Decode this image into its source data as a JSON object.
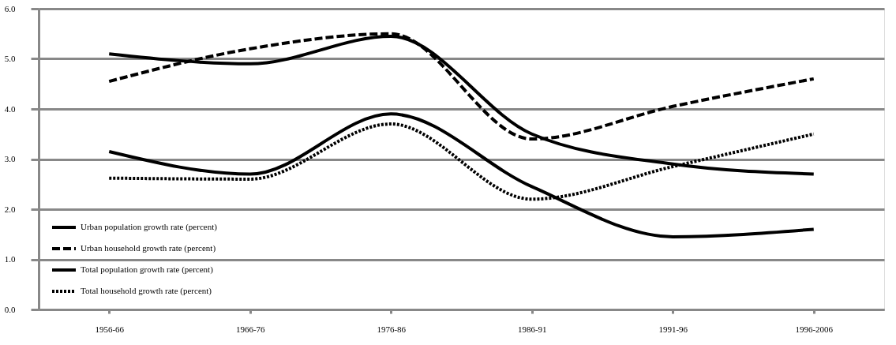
{
  "chart_data": {
    "type": "line",
    "categories": [
      "1956-66",
      "1966-76",
      "1976-86",
      "1986-91",
      "1991-96",
      "1996-2006"
    ],
    "series": [
      {
        "name": "Urban population growth rate (percent)",
        "color": "#000000",
        "line_style": "solid",
        "values": [
          5.1,
          4.9,
          5.45,
          3.5,
          2.9,
          2.7
        ]
      },
      {
        "name": "Urban household growth rate (percent)",
        "color": "#000000",
        "line_style": "dashed",
        "values": [
          4.55,
          5.2,
          5.5,
          3.4,
          4.05,
          4.6
        ]
      },
      {
        "name": "Total population growth rate (percent)",
        "color": "#000000",
        "line_style": "solid",
        "values": [
          3.15,
          2.7,
          3.9,
          2.45,
          1.45,
          1.6
        ]
      },
      {
        "name": "Total household growth rate (percent)",
        "color": "#000000",
        "line_style": "dotted",
        "values": [
          2.62,
          2.6,
          3.7,
          2.2,
          2.85,
          3.5
        ]
      }
    ],
    "ylim": [
      0,
      6
    ],
    "yticks": [
      {
        "value": 0,
        "label": "0.0"
      },
      {
        "value": 1,
        "label": "1.0"
      },
      {
        "value": 2,
        "label": "2.0"
      },
      {
        "value": 3,
        "label": "3.0"
      },
      {
        "value": 4,
        "label": "4.0"
      },
      {
        "value": 5,
        "label": "5.0"
      },
      {
        "value": 6,
        "label": "6.0"
      }
    ],
    "grid": "y",
    "legend": "bottom left",
    "marker": "none"
  }
}
